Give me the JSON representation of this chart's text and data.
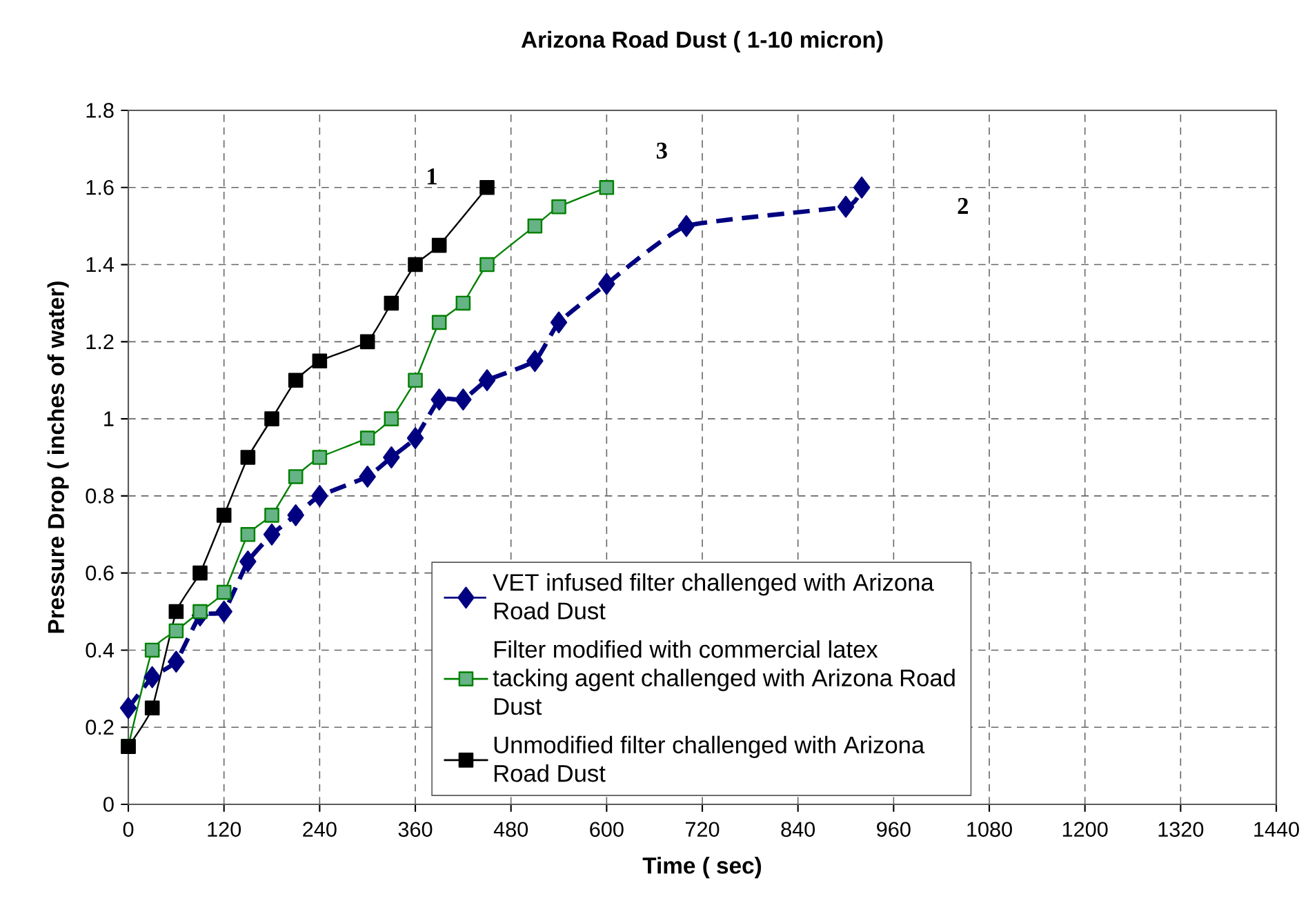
{
  "chart_data": {
    "type": "line",
    "title": "Arizona Road Dust ( 1-10 micron)",
    "xlabel": "Time ( sec)",
    "ylabel": "Pressure Drop ( inches of water)",
    "xlim": [
      0,
      1440
    ],
    "xticks": [
      0,
      120,
      240,
      360,
      480,
      600,
      720,
      840,
      960,
      1080,
      1200,
      1320,
      1440
    ],
    "ylim": [
      0,
      1.8
    ],
    "yticks": [
      0,
      0.2,
      0.4,
      0.6,
      0.8,
      1,
      1.2,
      1.4,
      1.6,
      1.8
    ],
    "grid": true,
    "legend": "bottom right",
    "series": [
      {
        "name": "VET infused filter challenged with Arizona Road Dust",
        "color": "#000080",
        "marker": "diamond",
        "line_style": "dashed",
        "x": [
          0,
          30,
          60,
          90,
          120,
          150,
          180,
          210,
          240,
          300,
          330,
          360,
          390,
          420,
          450,
          510,
          540,
          600,
          700,
          900,
          920
        ],
        "values": [
          0.25,
          0.33,
          0.37,
          0.49,
          0.5,
          0.63,
          0.7,
          0.75,
          0.8,
          0.85,
          0.9,
          0.95,
          1.05,
          1.05,
          1.1,
          1.15,
          1.25,
          1.35,
          1.5,
          1.55,
          1.6
        ]
      },
      {
        "name": " Filter modified with commercial latex tacking agent challenged with Arizona Road Dust",
        "color": "#008000",
        "marker": "square",
        "line_style": "solid",
        "x": [
          0,
          30,
          60,
          90,
          120,
          150,
          180,
          210,
          240,
          300,
          330,
          360,
          390,
          420,
          450,
          510,
          540,
          600
        ],
        "values": [
          0.15,
          0.4,
          0.45,
          0.5,
          0.55,
          0.7,
          0.75,
          0.85,
          0.9,
          0.95,
          1.0,
          1.1,
          1.25,
          1.3,
          1.4,
          1.5,
          1.55,
          1.6
        ]
      },
      {
        "name": "Unmodified filter challenged with Arizona Road Dust",
        "color": "#000000",
        "marker": "square",
        "line_style": "solid",
        "x": [
          0,
          30,
          60,
          90,
          120,
          150,
          180,
          210,
          240,
          300,
          330,
          360,
          390,
          450
        ],
        "values": [
          0.15,
          0.25,
          0.5,
          0.6,
          0.75,
          0.9,
          1.0,
          1.1,
          1.15,
          1.2,
          1.3,
          1.4,
          1.45,
          1.6
        ]
      }
    ],
    "annotations": [
      "1",
      "3",
      "2"
    ]
  }
}
